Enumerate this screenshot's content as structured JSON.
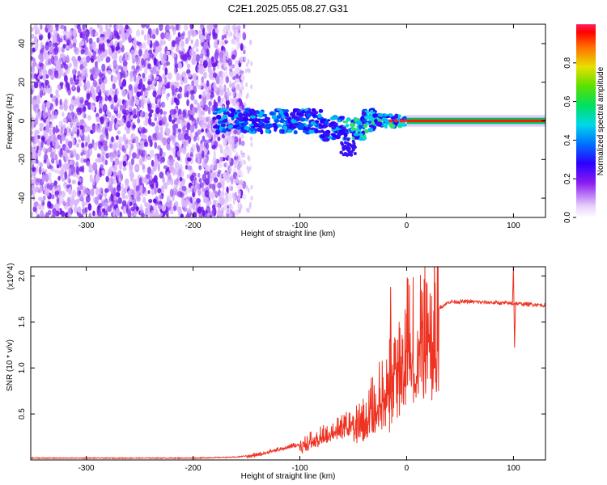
{
  "title": "C2E1.2025.055.08.27.G31",
  "colors": {
    "snr_line": "#ee3322",
    "speckle": "#7a1ff0",
    "frame": "#000000"
  },
  "chart_data": [
    {
      "type": "heatmap",
      "xlabel": "Height of straight line (km)",
      "ylabel": "Frequency (Hz)",
      "xlim": [
        -352,
        130
      ],
      "ylim": [
        -50,
        50
      ],
      "x_ticks": [
        -300,
        -200,
        -100,
        0,
        100
      ],
      "x_tick_labels": [
        "-300",
        "-200",
        "-100",
        "0",
        "100"
      ],
      "y_ticks": [
        -40,
        -20,
        0,
        20,
        40
      ],
      "y_tick_labels": [
        "-40",
        "-20",
        "0",
        "20",
        "40"
      ],
      "colorbar": {
        "label": "Normalized spectral amplitude",
        "range": [
          0,
          1
        ],
        "ticks": [
          0.0,
          0.2,
          0.4,
          0.6,
          0.8
        ],
        "tick_labels": [
          "0.0",
          "0.2",
          "0.4",
          "0.6",
          "0.8"
        ]
      },
      "regions": [
        {
          "x_range": [
            -352,
            -155
          ],
          "freq_range": [
            -50,
            50
          ],
          "amplitude": "low (0.1-0.3), noise"
        },
        {
          "x_range": [
            -180,
            -30
          ],
          "freq_range": [
            -10,
            8
          ],
          "amplitude": "0.2-0.5"
        },
        {
          "x_range": [
            -30,
            0
          ],
          "freq_range": [
            -3,
            3
          ],
          "amplitude": "0.5-0.9"
        },
        {
          "x_range": [
            0,
            130
          ],
          "freq_range": [
            -1,
            1
          ],
          "amplitude": "~1.0, narrow band"
        }
      ],
      "grid": false
    },
    {
      "type": "line",
      "xlabel": "Height of straight line (km)",
      "ylabel": "SNR (10 * v/v)",
      "y_multiplier": "(x10^4)",
      "xlim": [
        -352,
        130
      ],
      "ylim": [
        0,
        2.1
      ],
      "x_ticks": [
        -300,
        -200,
        -100,
        0,
        100
      ],
      "x_tick_labels": [
        "-300",
        "-200",
        "-100",
        "0",
        "100"
      ],
      "y_ticks": [
        0.5,
        1.0,
        1.5,
        2.0
      ],
      "y_tick_labels": [
        "0.5",
        "1.0",
        "1.5",
        "2.0"
      ],
      "series": [
        {
          "x": [
            -352,
            -300,
            -250,
            -200,
            -160,
            -140,
            -120,
            -100,
            -90,
            -80,
            -70,
            -60,
            -50,
            -40,
            -30,
            -20,
            -15,
            -10,
            -5,
            0,
            5,
            10,
            20,
            30,
            40,
            50,
            60,
            80,
            100,
            120,
            130
          ],
          "values": [
            0.02,
            0.02,
            0.02,
            0.02,
            0.03,
            0.06,
            0.12,
            0.18,
            0.22,
            0.27,
            0.32,
            0.37,
            0.42,
            0.5,
            0.62,
            0.8,
            0.9,
            1.05,
            1.2,
            1.3,
            1.4,
            1.5,
            1.6,
            1.65,
            1.72,
            1.72,
            1.72,
            1.71,
            1.7,
            1.69,
            1.68
          ]
        }
      ],
      "grid": false
    }
  ]
}
